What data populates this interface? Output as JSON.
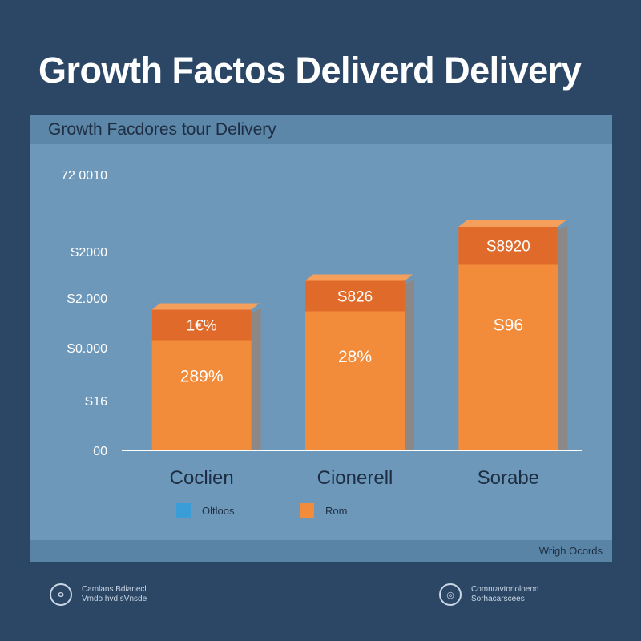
{
  "page": {
    "title": "Growth Factos Deliverd Delivery"
  },
  "panel": {
    "title": "Growth Facdores tour Delivery",
    "footer_note": "Wrigh Ocords"
  },
  "chart_data": {
    "type": "bar",
    "categories": [
      "Coclien",
      "Cionerell",
      "Sorabe"
    ],
    "values": [
      1.95,
      2.35,
      3.1
    ],
    "top_segment_labels": [
      "1€%",
      "S826",
      "S8920"
    ],
    "bar_labels": [
      "289%",
      "28%",
      "S96"
    ],
    "y_tick_labels": [
      "00",
      "S16",
      "S0.000",
      "S2.000",
      "S2000",
      "72 0010"
    ],
    "ylim": [
      0,
      4
    ],
    "grid": false,
    "legend": [
      {
        "name": "Oltloos",
        "color": "#3a9dd8"
      },
      {
        "name": "Rom",
        "color": "#f28b3a"
      }
    ],
    "legend_position": "bottom",
    "colors": {
      "bar": "#f28b3a",
      "bar_top": "#e06a2a",
      "bar_side": "#c96a2d",
      "axis": "#ffffff"
    }
  },
  "footer_logos": [
    {
      "mark": "ㅇ",
      "lines": [
        "Camlans Bdianecl",
        "Vmdo hvd sVnsde"
      ]
    },
    {
      "mark": "◎",
      "lines": [
        "Comnravtorloloeon",
        "Sorhacarscees"
      ]
    }
  ]
}
